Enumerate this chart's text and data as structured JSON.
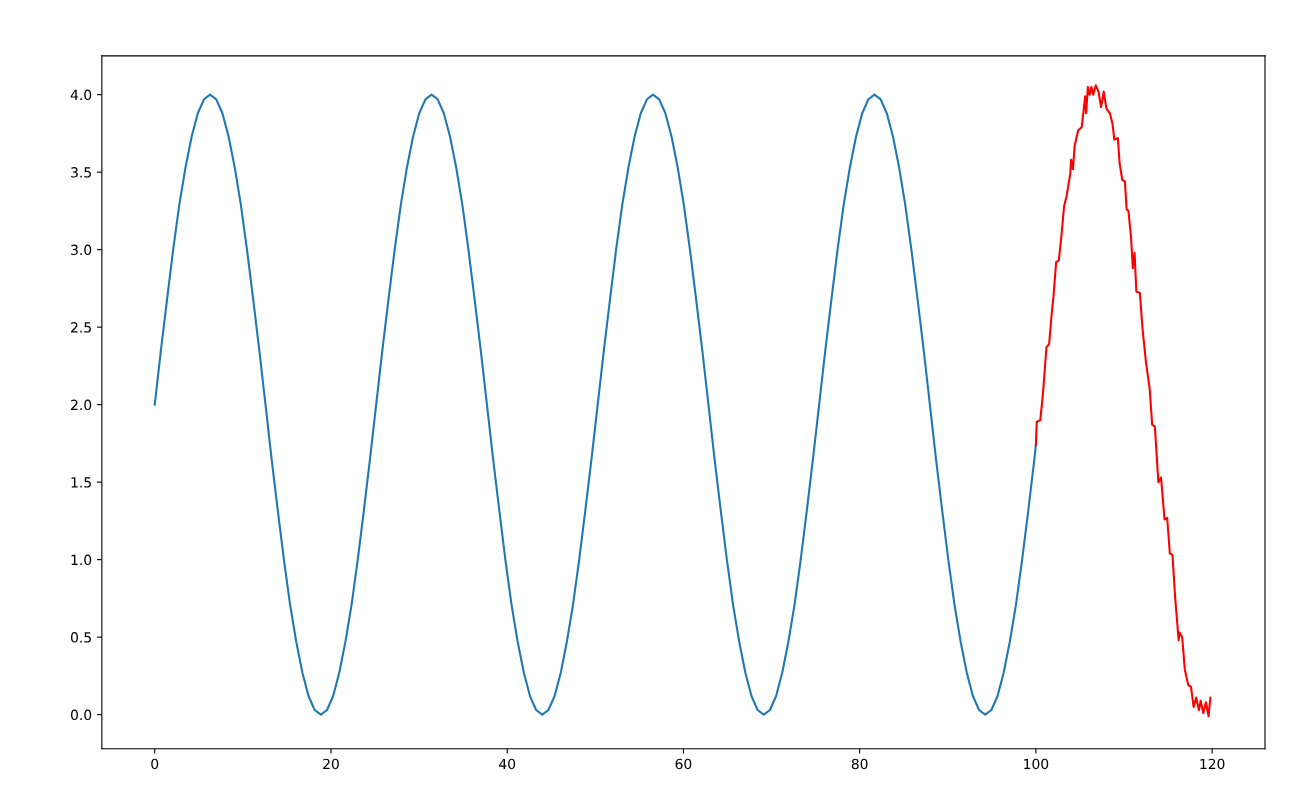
{
  "chart_data": {
    "type": "line",
    "xlim": [
      -6,
      126
    ],
    "ylim": [
      -0.22,
      4.25
    ],
    "xticks": [
      0,
      20,
      40,
      60,
      80,
      100,
      120
    ],
    "yticks": [
      {
        "value": 0,
        "label": "0.0"
      },
      {
        "value": 0.5,
        "label": "0.5"
      },
      {
        "value": 1,
        "label": "1.0"
      },
      {
        "value": 1.5,
        "label": "1.5"
      },
      {
        "value": 2,
        "label": "2.0"
      },
      {
        "value": 2.5,
        "label": "2.5"
      },
      {
        "value": 3,
        "label": "3.0"
      },
      {
        "value": 3.5,
        "label": "3.5"
      },
      {
        "value": 4,
        "label": "4.0"
      }
    ],
    "grid": false,
    "line_style": "solid",
    "marker": "none",
    "series": [
      {
        "color": "#1f77b4",
        "x": [
          0,
          0.7,
          1.4,
          2.09,
          2.79,
          3.49,
          4.19,
          4.89,
          5.59,
          6.28,
          6.98,
          7.68,
          8.38,
          9.08,
          9.77,
          10.47,
          11.17,
          11.87,
          12.57,
          13.26,
          13.96,
          14.66,
          15.36,
          16.06,
          16.76,
          17.45,
          18.15,
          18.85,
          19.55,
          20.25,
          20.94,
          21.64,
          22.34,
          23.04,
          23.74,
          24.43,
          25.13,
          25.83,
          26.53,
          27.23,
          27.93,
          28.62,
          29.32,
          30.02,
          30.72,
          31.42,
          32.11,
          32.81,
          33.51,
          34.21,
          34.91,
          35.6,
          36.3,
          37.0,
          37.7,
          38.4,
          39.1,
          39.79,
          40.49,
          41.19,
          41.89,
          42.59,
          43.28,
          43.98,
          44.68,
          45.38,
          46.08,
          46.77,
          47.47,
          48.17,
          48.87,
          49.57,
          50.27,
          50.97,
          51.67,
          52.36,
          53.06,
          53.76,
          54.46,
          55.16,
          55.86,
          56.55,
          57.25,
          57.95,
          58.65,
          59.35,
          60.04,
          60.74,
          61.44,
          62.14,
          62.84,
          63.53,
          64.23,
          64.93,
          65.63,
          66.33,
          67.03,
          67.72,
          68.42,
          69.12,
          69.82,
          70.52,
          71.21,
          71.91,
          72.61,
          73.31,
          74.01,
          74.7,
          75.4,
          76.1,
          76.8,
          77.49,
          78.19,
          78.89,
          79.59,
          80.29,
          80.99,
          81.68,
          82.38,
          83.08,
          83.78,
          84.48,
          85.17,
          85.87,
          86.57,
          87.27,
          87.97,
          88.66,
          89.36,
          90.06,
          90.76,
          91.46,
          92.16,
          92.85,
          93.55,
          94.25,
          94.95,
          95.65,
          96.34,
          97.04,
          97.74,
          98.44,
          99.14,
          99.83,
          100
        ],
        "values": [
          2,
          2.35,
          2.68,
          3.0,
          3.29,
          3.53,
          3.73,
          3.88,
          3.97,
          4.0,
          3.97,
          3.88,
          3.73,
          3.53,
          3.29,
          3.0,
          2.68,
          2.35,
          2.0,
          1.65,
          1.32,
          1.0,
          0.71,
          0.47,
          0.27,
          0.12,
          0.03,
          0.0,
          0.03,
          0.12,
          0.27,
          0.47,
          0.71,
          1.0,
          1.32,
          1.65,
          2,
          2.35,
          2.68,
          3.0,
          3.29,
          3.53,
          3.73,
          3.88,
          3.97,
          4.0,
          3.97,
          3.88,
          3.73,
          3.53,
          3.29,
          3.0,
          2.68,
          2.35,
          2.0,
          1.65,
          1.32,
          1.0,
          0.71,
          0.47,
          0.27,
          0.12,
          0.03,
          0.0,
          0.03,
          0.12,
          0.27,
          0.47,
          0.71,
          1.0,
          1.32,
          1.65,
          2,
          2.35,
          2.68,
          3.0,
          3.29,
          3.53,
          3.73,
          3.88,
          3.97,
          4.0,
          3.97,
          3.88,
          3.73,
          3.53,
          3.29,
          3.0,
          2.68,
          2.35,
          2.0,
          1.65,
          1.32,
          1.0,
          0.71,
          0.47,
          0.27,
          0.12,
          0.03,
          0.0,
          0.03,
          0.12,
          0.27,
          0.47,
          0.71,
          1.0,
          1.32,
          1.65,
          2,
          2.35,
          2.68,
          3.0,
          3.29,
          3.53,
          3.73,
          3.88,
          3.97,
          4.0,
          3.97,
          3.88,
          3.73,
          3.53,
          3.29,
          3.0,
          2.68,
          2.35,
          2.0,
          1.65,
          1.32,
          1.0,
          0.71,
          0.47,
          0.27,
          0.12,
          0.03,
          0.0,
          0.03,
          0.12,
          0.27,
          0.47,
          0.71,
          1.0,
          1.32,
          1.65,
          1.74
        ]
      },
      {
        "color": "#ff0000",
        "x": [
          100,
          100.1,
          100.5,
          100.8,
          101.2,
          101.5,
          101.8,
          102.0,
          102.3,
          102.6,
          102.9,
          103.2,
          103.5,
          103.9,
          104.0,
          104.2,
          104.4,
          104.8,
          105.2,
          105.4,
          105.6,
          105.7,
          105.9,
          106.1,
          106.3,
          106.5,
          106.8,
          107.1,
          107.4,
          107.7,
          108.0,
          108.4,
          108.7,
          108.9,
          109.3,
          109.5,
          109.8,
          110.1,
          110.3,
          110.5,
          110.8,
          111.0,
          111.2,
          111.4,
          111.8,
          112.1,
          112.5,
          112.9,
          113.2,
          113.5,
          113.9,
          114.2,
          114.6,
          114.9,
          115.2,
          115.5,
          115.8,
          116.2,
          116.3,
          116.6,
          116.9,
          117.3,
          117.6,
          117.9,
          118.2,
          118.5,
          118.7,
          119.0,
          119.3,
          119.6,
          119.8
        ],
        "values": [
          1.74,
          1.89,
          1.9,
          2.07,
          2.37,
          2.39,
          2.59,
          2.7,
          2.92,
          2.93,
          3.09,
          3.28,
          3.35,
          3.49,
          3.58,
          3.52,
          3.67,
          3.77,
          3.79,
          3.89,
          3.99,
          3.88,
          4.05,
          4.0,
          4.05,
          4.0,
          4.06,
          4.02,
          3.92,
          4.02,
          3.91,
          3.88,
          3.81,
          3.71,
          3.72,
          3.56,
          3.45,
          3.44,
          3.26,
          3.25,
          3.08,
          2.88,
          2.98,
          2.73,
          2.72,
          2.49,
          2.27,
          2.11,
          1.87,
          1.86,
          1.5,
          1.53,
          1.26,
          1.27,
          1.04,
          1.03,
          0.76,
          0.48,
          0.53,
          0.5,
          0.29,
          0.19,
          0.18,
          0.05,
          0.11,
          0.03,
          0.09,
          0.01,
          0.08,
          -0.01,
          0.11
        ]
      }
    ]
  }
}
